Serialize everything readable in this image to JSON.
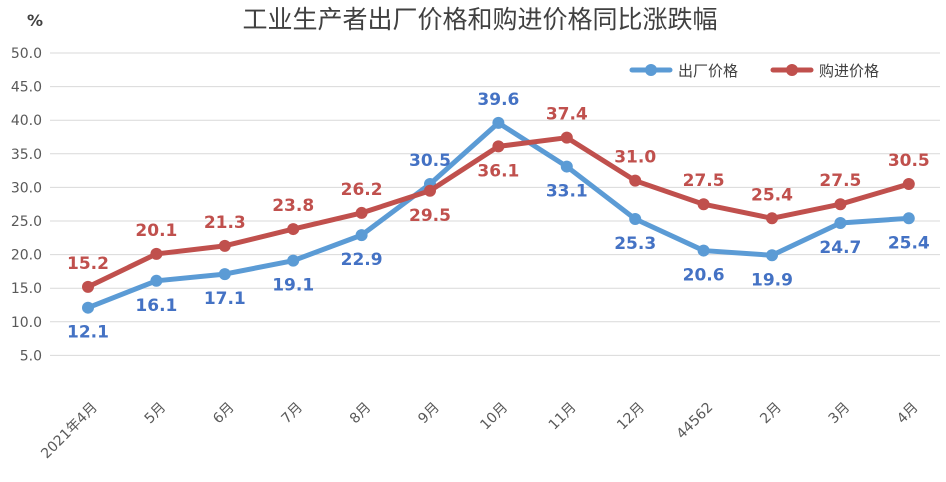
{
  "chart_data": {
    "type": "line",
    "title": "工业生产者出厂价格和购进价格同比涨跌幅",
    "unit_label": "%",
    "categories": [
      "2021年4月",
      "5月",
      "6月",
      "7月",
      "8月",
      "9月",
      "10月",
      "11月",
      "12月",
      "44562",
      "2月",
      "3月",
      "4月"
    ],
    "y_ticks": [
      "5.0",
      "10.0",
      "15.0",
      "20.0",
      "25.0",
      "30.0",
      "35.0",
      "40.0",
      "45.0",
      "50.0"
    ],
    "ylim": [
      0,
      50
    ],
    "grid": "horizontal",
    "legend_position": "top-right",
    "series": [
      {
        "name": "出厂价格",
        "color": "#5B9BD5",
        "label_color": "#4472C4",
        "values": [
          12.1,
          16.1,
          17.1,
          19.1,
          22.9,
          30.5,
          39.6,
          33.1,
          25.3,
          20.6,
          19.9,
          24.7,
          25.4
        ],
        "value_labels": [
          "12.1",
          "16.1",
          "17.1",
          "19.1",
          "22.9",
          "30.5",
          "39.6",
          "33.1",
          "25.3",
          "20.6",
          "19.9",
          "24.7",
          "25.4"
        ]
      },
      {
        "name": "购进价格",
        "color": "#C0504D",
        "label_color": "#C0504D",
        "values": [
          15.2,
          20.1,
          21.3,
          23.8,
          26.2,
          29.5,
          36.1,
          37.4,
          31.0,
          27.5,
          25.4,
          27.5,
          30.5
        ],
        "value_labels": [
          "15.2",
          "20.1",
          "21.3",
          "23.8",
          "26.2",
          "29.5",
          "36.1",
          "37.4",
          "31.0",
          "27.5",
          "25.4",
          "27.5",
          "30.5"
        ]
      }
    ]
  }
}
